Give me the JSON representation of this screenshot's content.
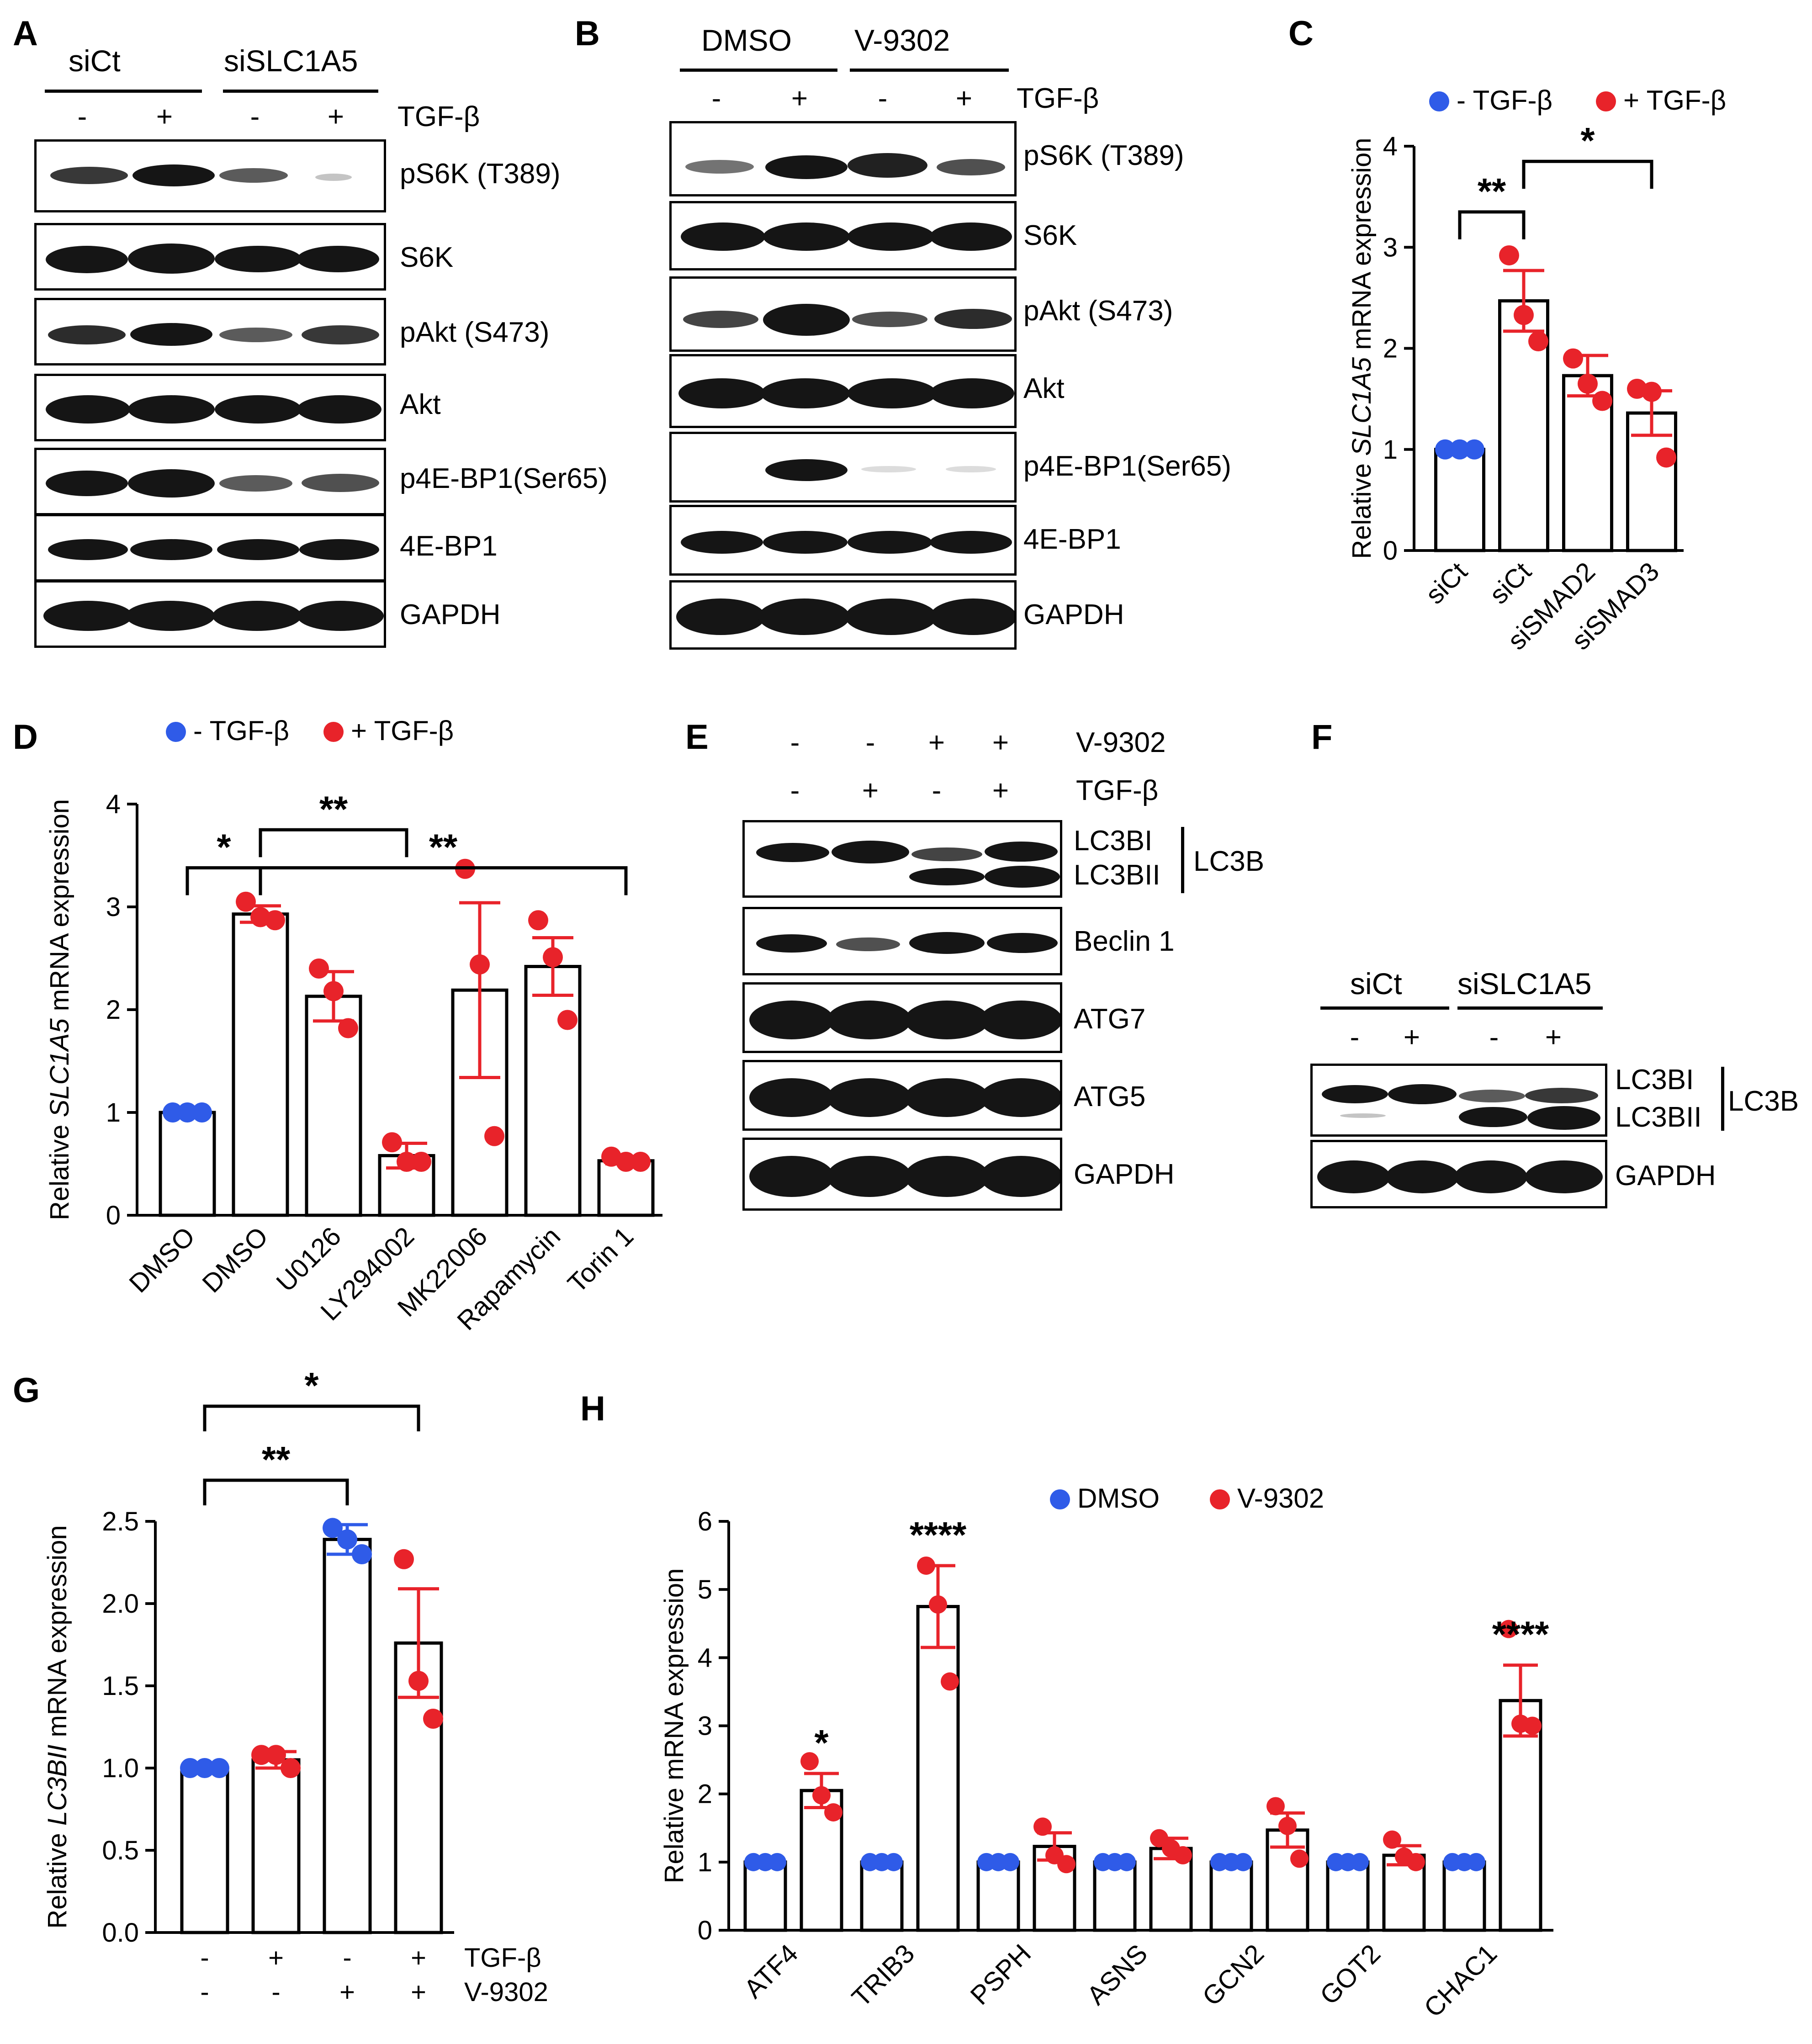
{
  "panels": {
    "A": {
      "label": "A",
      "groups": [
        "siCt",
        "siSLC1A5"
      ],
      "treatment": "TGF-β",
      "lane_signs": [
        "-",
        "+",
        "-",
        "+"
      ],
      "blots": [
        "pS6K (T389)",
        "S6K",
        "pAkt (S473)",
        "Akt",
        "p4E-BP1(Ser65)",
        "4E-BP1",
        "GAPDH"
      ]
    },
    "B": {
      "label": "B",
      "groups": [
        "DMSO",
        "V-9302"
      ],
      "treatment": "TGF-β",
      "lane_signs": [
        "-",
        "+",
        "-",
        "+"
      ],
      "blots": [
        "pS6K (T389)",
        "S6K",
        "pAkt (S473)",
        "Akt",
        "p4E-BP1(Ser65)",
        "4E-BP1",
        "GAPDH"
      ]
    },
    "E": {
      "label": "E",
      "rows": [
        {
          "name": "V-9302",
          "signs": [
            "-",
            "-",
            "+",
            "+"
          ]
        },
        {
          "name": "TGF-β",
          "signs": [
            "-",
            "+",
            "-",
            "+"
          ]
        }
      ],
      "blots": [
        "LC3BI",
        "LC3BII",
        "LC3B",
        "Beclin 1",
        "ATG7",
        "ATG5",
        "GAPDH"
      ]
    },
    "F": {
      "label": "F",
      "groups": [
        "siCt",
        "siSLC1A5"
      ],
      "lane_signs": [
        "-",
        "+",
        "-",
        "+"
      ],
      "blots": [
        "LC3BI",
        "LC3BII",
        "LC3B",
        "GAPDH"
      ]
    }
  },
  "chart_data": [
    {
      "panel": "C",
      "type": "bar",
      "ylabel_prefix": "Relative ",
      "ylabel_italic": "SLC1A5",
      "ylabel_suffix": " mRNA expression",
      "ylim": [
        0,
        4
      ],
      "yticks": [
        "0",
        "1",
        "2",
        "3",
        "4"
      ],
      "categories": [
        "siCt",
        "siCt",
        "siSMAD2",
        "siSMAD3"
      ],
      "legend": [
        {
          "name": "- TGF-β",
          "color": "#2f5be8"
        },
        {
          "name": "+ TGF-β",
          "color": "#e8232a"
        }
      ],
      "values": [
        1.0,
        2.47,
        1.73,
        1.36
      ],
      "errors": [
        0.0,
        0.3,
        0.2,
        0.22
      ],
      "points": [
        [
          1.0,
          1.0,
          1.0
        ],
        [
          2.92,
          2.33,
          2.07
        ],
        [
          1.9,
          1.65,
          1.48
        ],
        [
          1.6,
          1.57,
          0.92
        ]
      ],
      "series_index": [
        0,
        1,
        1,
        1
      ],
      "significance": [
        {
          "from": 0,
          "to": 1,
          "y": 3.35,
          "label": "**"
        },
        {
          "from": 1,
          "to": 3,
          "y": 3.85,
          "label": "*"
        }
      ]
    },
    {
      "panel": "D",
      "type": "bar",
      "ylabel_prefix": "Relative ",
      "ylabel_italic": "SLC1A5",
      "ylabel_suffix": " mRNA expression",
      "ylim": [
        0,
        4
      ],
      "yticks": [
        "0",
        "1",
        "2",
        "3",
        "4"
      ],
      "categories": [
        "DMSO",
        "DMSO",
        "U0126",
        "LY294002",
        "MK22006",
        "Rapamycin",
        "Torin 1"
      ],
      "legend": [
        {
          "name": "- TGF-β",
          "color": "#2f5be8"
        },
        {
          "name": "+ TGF-β",
          "color": "#e8232a"
        }
      ],
      "values": [
        1.0,
        2.93,
        2.13,
        0.58,
        2.19,
        2.42,
        0.53
      ],
      "errors": [
        0.0,
        0.08,
        0.24,
        0.12,
        0.85,
        0.28,
        0.03
      ],
      "points": [
        [
          1.0,
          1.0,
          1.0
        ],
        [
          3.05,
          2.9,
          2.87
        ],
        [
          2.4,
          2.18,
          1.82
        ],
        [
          0.71,
          0.52,
          0.52
        ],
        [
          3.37,
          2.44,
          0.77
        ],
        [
          2.87,
          2.51,
          1.9
        ],
        [
          0.57,
          0.52,
          0.52
        ]
      ],
      "series_index": [
        0,
        1,
        1,
        1,
        1,
        1,
        1
      ],
      "significance": [
        {
          "from": 0,
          "to": 1,
          "y": 3.38,
          "label": "*"
        },
        {
          "from": 1,
          "to": 3,
          "y": 3.75,
          "label": "**"
        },
        {
          "from": 1,
          "to": 6,
          "y": 3.38,
          "label": "**"
        }
      ]
    },
    {
      "panel": "G",
      "type": "bar",
      "ylabel_prefix": "Relative ",
      "ylabel_italic": "LC3BII",
      "ylabel_suffix": " mRNA expression",
      "ylim": [
        0,
        2.5
      ],
      "yticks": [
        "0.0",
        "0.5",
        "1.0",
        "1.5",
        "2.0",
        "2.5"
      ],
      "categories": [
        "",
        "",
        "",
        ""
      ],
      "legend": [],
      "row_labels": [
        {
          "name": "TGF-β",
          "signs": [
            "-",
            "+",
            "-",
            "+"
          ]
        },
        {
          "name": "V-9302",
          "signs": [
            "-",
            "-",
            "+",
            "+"
          ]
        }
      ],
      "values": [
        1.0,
        1.05,
        2.39,
        1.76
      ],
      "errors": [
        0.0,
        0.05,
        0.09,
        0.33
      ],
      "points": [
        [
          1.0,
          1.0,
          1.0
        ],
        [
          1.08,
          1.08,
          1.0
        ],
        [
          2.46,
          2.39,
          2.3
        ],
        [
          2.27,
          1.53,
          1.3
        ]
      ],
      "point_colors": [
        "#2f5be8",
        "#e8232a",
        "#2f5be8",
        "#e8232a"
      ],
      "bar_err_colors": [
        "#2f5be8",
        "#e8232a",
        "#2f5be8",
        "#e8232a"
      ],
      "significance": [
        {
          "from": 0,
          "to": 2,
          "y": 2.75,
          "label": "**"
        },
        {
          "from": 0,
          "to": 3,
          "y": 3.2,
          "label": "*"
        }
      ]
    },
    {
      "panel": "H",
      "type": "bar",
      "ylabel_prefix": "Relative mRNA expression",
      "ylabel_italic": "",
      "ylabel_suffix": "",
      "ylim": [
        0,
        6
      ],
      "yticks": [
        "0",
        "1",
        "2",
        "3",
        "4",
        "5",
        "6"
      ],
      "categories": [
        "ATF4",
        "TRIB3",
        "PSPH",
        "ASNS",
        "GCN2",
        "GOT2",
        "CHAC1"
      ],
      "legend": [
        {
          "name": "DMSO",
          "color": "#2f5be8"
        },
        {
          "name": "V-9302",
          "color": "#e8232a"
        }
      ],
      "series": [
        {
          "name": "DMSO",
          "values": [
            1,
            1,
            1,
            1,
            1,
            1,
            1
          ],
          "errors": [
            0,
            0,
            0,
            0,
            0,
            0,
            0
          ],
          "points": [
            [
              1,
              1,
              1
            ],
            [
              1,
              1,
              1
            ],
            [
              1,
              1,
              1
            ],
            [
              1,
              1,
              1
            ],
            [
              1,
              1,
              1
            ],
            [
              1,
              1,
              1
            ],
            [
              1,
              1,
              1
            ]
          ]
        },
        {
          "name": "V-9302",
          "values": [
            2.05,
            4.75,
            1.23,
            1.2,
            1.47,
            1.1,
            3.37
          ],
          "errors": [
            0.25,
            0.6,
            0.2,
            0.15,
            0.25,
            0.14,
            0.52
          ],
          "points": [
            [
              2.48,
              1.98,
              1.73
            ],
            [
              5.35,
              4.78,
              3.65
            ],
            [
              1.52,
              1.1,
              0.97
            ],
            [
              1.35,
              1.2,
              1.1
            ],
            [
              1.82,
              1.53,
              1.05
            ],
            [
              1.33,
              1.08,
              1.0
            ],
            [
              4.42,
              3.03,
              3.0
            ]
          ]
        }
      ],
      "significance_labels": [
        "*",
        "****",
        "",
        "",
        "",
        "",
        "****"
      ]
    }
  ]
}
